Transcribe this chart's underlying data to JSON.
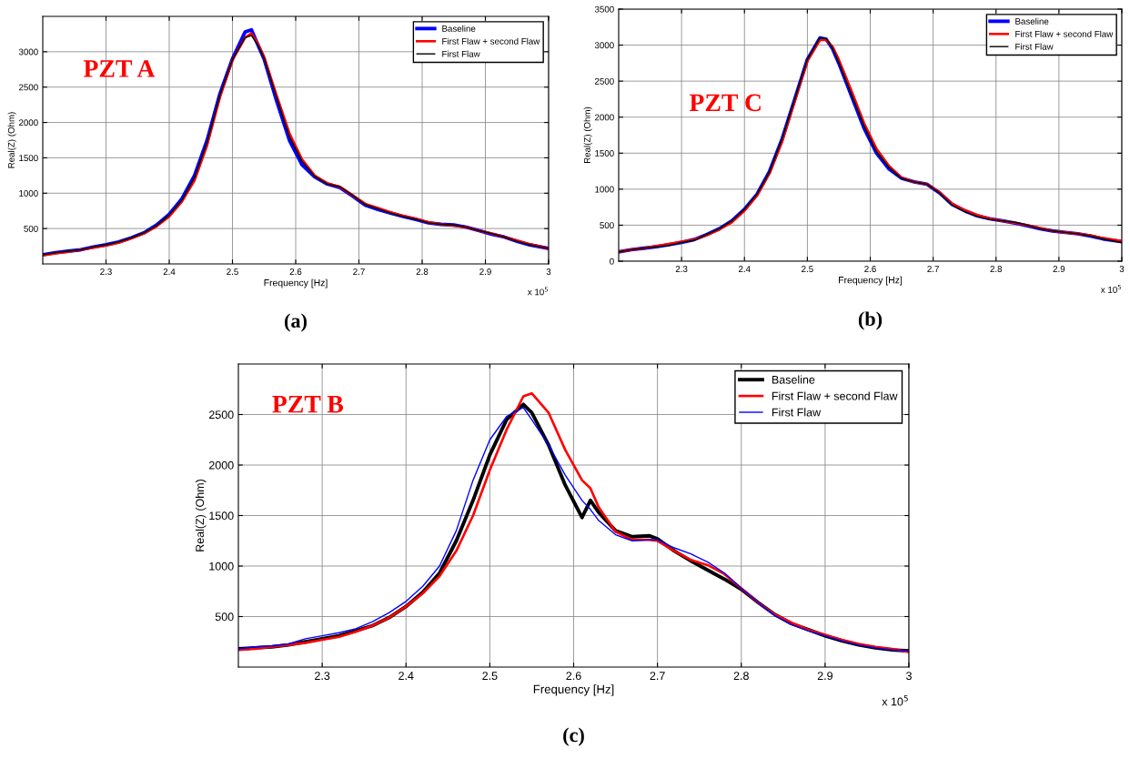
{
  "chart_data": [
    {
      "type": "line",
      "xlabel": "Frequency [Hz]",
      "ylabel": "Real(Z) (Ohm)",
      "annotations": [
        "PZT A",
        "x 10$^{5}$",
        "(a)"
      ],
      "legend": "top right",
      "grid": true,
      "line_style": "solid",
      "marker": "none",
      "x": [
        2.2,
        2.22,
        2.24,
        2.26,
        2.28,
        2.3,
        2.32,
        2.34,
        2.36,
        2.38,
        2.4,
        2.42,
        2.44,
        2.46,
        2.48,
        2.5,
        2.52,
        2.53,
        2.54,
        2.55,
        2.57,
        2.59,
        2.61,
        2.63,
        2.65,
        2.67,
        2.69,
        2.71,
        2.73,
        2.75,
        2.77,
        2.79,
        2.81,
        2.83,
        2.85,
        2.87,
        2.89,
        2.91,
        2.93,
        2.95,
        2.97,
        3.0
      ],
      "xlim": [
        2.2,
        3
      ],
      "xticks": [
        2.3,
        2.4,
        2.5,
        2.6,
        2.7,
        2.8,
        2.9,
        3
      ],
      "ylim": [
        0,
        3500
      ],
      "yticks": [
        500,
        1000,
        1500,
        2000,
        2500,
        3000
      ],
      "series": [
        {
          "name": "Baseline",
          "color": "#0000ff",
          "values": [
            130,
            160,
            180,
            200,
            240,
            270,
            310,
            370,
            440,
            550,
            700,
            920,
            1250,
            1750,
            2400,
            2900,
            3280,
            3310,
            3100,
            2900,
            2300,
            1750,
            1400,
            1230,
            1130,
            1080,
            960,
            830,
            770,
            720,
            670,
            630,
            580,
            560,
            550,
            520,
            470,
            420,
            380,
            320,
            270,
            220
          ]
        },
        {
          "name": "First Flaw + second Flaw",
          "color": "#ff0000",
          "values": [
            120,
            150,
            170,
            200,
            230,
            260,
            300,
            360,
            430,
            530,
            670,
            880,
            1180,
            1680,
            2350,
            2880,
            3200,
            3260,
            3120,
            2930,
            2380,
            1850,
            1480,
            1250,
            1140,
            1090,
            970,
            850,
            790,
            730,
            680,
            640,
            590,
            560,
            540,
            520,
            470,
            430,
            380,
            330,
            280,
            220
          ]
        },
        {
          "name": "First Flaw",
          "color": "#000000",
          "values": [
            130,
            160,
            180,
            200,
            240,
            270,
            310,
            370,
            440,
            540,
            690,
            900,
            1220,
            1720,
            2380,
            2890,
            3200,
            3230,
            3100,
            2910,
            2350,
            1800,
            1450,
            1240,
            1130,
            1090,
            970,
            840,
            780,
            720,
            670,
            630,
            580,
            560,
            550,
            520,
            470,
            430,
            380,
            320,
            270,
            220
          ]
        }
      ]
    },
    {
      "type": "line",
      "xlabel": "Frequency [Hz]",
      "ylabel": "Real(Z) (Ohm)",
      "annotations": [
        "PZT C",
        "x 10$^{5}$",
        "(b)"
      ],
      "legend": "top right",
      "grid": true,
      "line_style": "solid",
      "marker": "none",
      "x": [
        2.2,
        2.22,
        2.24,
        2.26,
        2.28,
        2.3,
        2.32,
        2.34,
        2.36,
        2.38,
        2.4,
        2.42,
        2.44,
        2.46,
        2.48,
        2.5,
        2.52,
        2.53,
        2.54,
        2.55,
        2.57,
        2.59,
        2.61,
        2.63,
        2.65,
        2.67,
        2.69,
        2.71,
        2.73,
        2.75,
        2.77,
        2.79,
        2.81,
        2.83,
        2.85,
        2.87,
        2.89,
        2.91,
        2.93,
        2.95,
        2.97,
        3.0
      ],
      "xlim": [
        2.2,
        3
      ],
      "xticks": [
        2.3,
        2.4,
        2.5,
        2.6,
        2.7,
        2.8,
        2.9,
        3
      ],
      "ylim": [
        0,
        3500
      ],
      "yticks": [
        0,
        500,
        1000,
        1500,
        2000,
        2500,
        3000,
        3500
      ],
      "series": [
        {
          "name": "Baseline",
          "color": "#0000ff",
          "values": [
            130,
            160,
            180,
            200,
            230,
            260,
            300,
            370,
            450,
            560,
            720,
            930,
            1250,
            1700,
            2250,
            2800,
            3100,
            3080,
            2950,
            2750,
            2300,
            1850,
            1500,
            1280,
            1150,
            1100,
            1070,
            950,
            790,
            700,
            630,
            590,
            560,
            530,
            490,
            450,
            420,
            400,
            380,
            350,
            310,
            270
          ]
        },
        {
          "name": "First Flaw + second Flaw",
          "color": "#ff0000",
          "values": [
            130,
            160,
            180,
            210,
            240,
            270,
            300,
            360,
            440,
            540,
            700,
            910,
            1220,
            1660,
            2220,
            2780,
            3070,
            3070,
            2980,
            2800,
            2370,
            1920,
            1560,
            1320,
            1160,
            1100,
            1070,
            960,
            800,
            710,
            640,
            590,
            560,
            530,
            500,
            460,
            420,
            400,
            380,
            360,
            320,
            280
          ]
        },
        {
          "name": "First Flaw",
          "color": "#000000",
          "values": [
            130,
            160,
            180,
            200,
            220,
            260,
            290,
            370,
            450,
            560,
            720,
            930,
            1240,
            1700,
            2250,
            2800,
            3100,
            3090,
            2960,
            2760,
            2320,
            1880,
            1520,
            1300,
            1150,
            1100,
            1070,
            950,
            780,
            690,
            620,
            580,
            560,
            540,
            500,
            450,
            420,
            400,
            380,
            350,
            310,
            260
          ]
        }
      ]
    },
    {
      "type": "line",
      "xlabel": "Frequency [Hz]",
      "ylabel": "Real(Z) (Ohm)",
      "annotations": [
        "PZT B",
        "x 10$^{5}$",
        "(c)"
      ],
      "legend": "top right",
      "grid": true,
      "line_style": "solid",
      "marker": "none",
      "x": [
        2.2,
        2.22,
        2.24,
        2.26,
        2.28,
        2.3,
        2.32,
        2.34,
        2.36,
        2.38,
        2.4,
        2.42,
        2.44,
        2.46,
        2.48,
        2.5,
        2.52,
        2.54,
        2.55,
        2.57,
        2.59,
        2.61,
        2.62,
        2.63,
        2.65,
        2.67,
        2.69,
        2.7,
        2.72,
        2.74,
        2.76,
        2.78,
        2.8,
        2.82,
        2.84,
        2.86,
        2.88,
        2.9,
        2.92,
        2.94,
        2.96,
        2.98,
        3.0
      ],
      "xlim": [
        2.2,
        3
      ],
      "xticks": [
        2.3,
        2.4,
        2.5,
        2.6,
        2.7,
        2.8,
        2.9,
        3
      ],
      "ylim": [
        0,
        3000
      ],
      "yticks": [
        500,
        1000,
        1500,
        2000,
        2500
      ],
      "series": [
        {
          "name": "Baseline",
          "color": "#000000",
          "values": [
            180,
            190,
            200,
            220,
            250,
            280,
            310,
            360,
            410,
            490,
            600,
            740,
            930,
            1250,
            1650,
            2100,
            2450,
            2600,
            2520,
            2200,
            1800,
            1480,
            1650,
            1530,
            1350,
            1290,
            1300,
            1270,
            1150,
            1050,
            960,
            870,
            770,
            640,
            520,
            430,
            370,
            310,
            260,
            220,
            190,
            170,
            160
          ]
        },
        {
          "name": "First Flaw + second Flaw",
          "color": "#ff0000",
          "values": [
            170,
            180,
            200,
            220,
            240,
            270,
            300,
            350,
            410,
            490,
            600,
            730,
            900,
            1150,
            1500,
            1950,
            2350,
            2680,
            2710,
            2520,
            2150,
            1850,
            1770,
            1580,
            1340,
            1260,
            1260,
            1250,
            1150,
            1060,
            1010,
            920,
            780,
            640,
            520,
            440,
            370,
            320,
            270,
            230,
            200,
            180,
            150
          ]
        },
        {
          "name": "First Flaw",
          "color": "#0000ff",
          "values": [
            180,
            200,
            210,
            230,
            280,
            310,
            340,
            380,
            450,
            540,
            650,
            800,
            1000,
            1350,
            1850,
            2250,
            2480,
            2570,
            2450,
            2200,
            1900,
            1650,
            1560,
            1450,
            1310,
            1250,
            1260,
            1260,
            1180,
            1120,
            1040,
            930,
            780,
            640,
            510,
            420,
            360,
            310,
            260,
            220,
            190,
            170,
            160
          ]
        }
      ]
    }
  ]
}
